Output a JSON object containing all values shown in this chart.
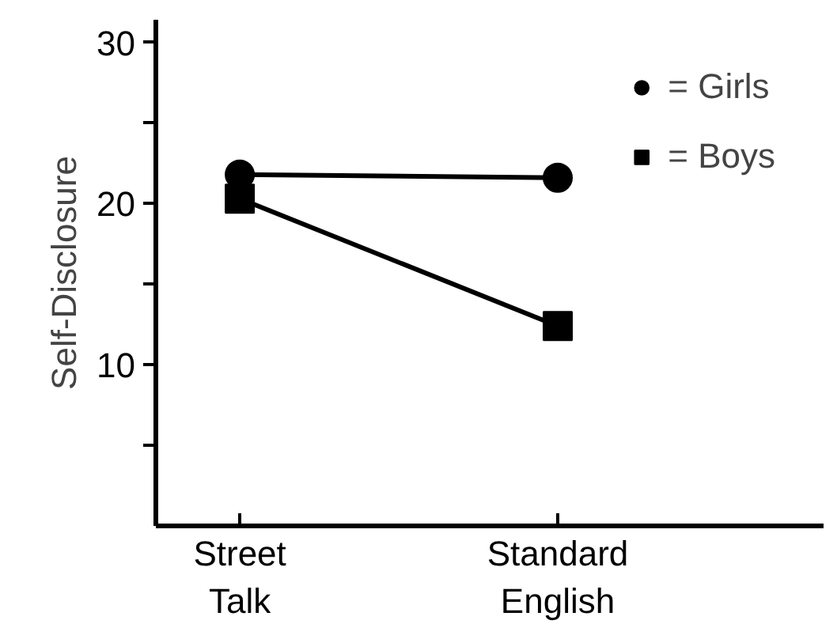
{
  "chart_data": {
    "type": "line",
    "ylabel": "Self-Disclosure",
    "categories": [
      "Street Talk",
      "Standard English"
    ],
    "series": [
      {
        "name": "= Girls",
        "color": "#000000",
        "marker": "circle",
        "values": [
          21.8,
          21.6
        ]
      },
      {
        "name": "= Boys",
        "color": "#000000",
        "marker": "square",
        "values": [
          20.3,
          12.4
        ]
      }
    ],
    "ylim": [
      0,
      31.4
    ],
    "yticks": [
      {
        "value": 5,
        "label": null
      },
      10,
      {
        "value": 15,
        "label": null
      },
      20,
      {
        "value": 25,
        "label": null
      },
      30
    ],
    "grid": false,
    "legend": "top right",
    "line_style": "solid"
  }
}
